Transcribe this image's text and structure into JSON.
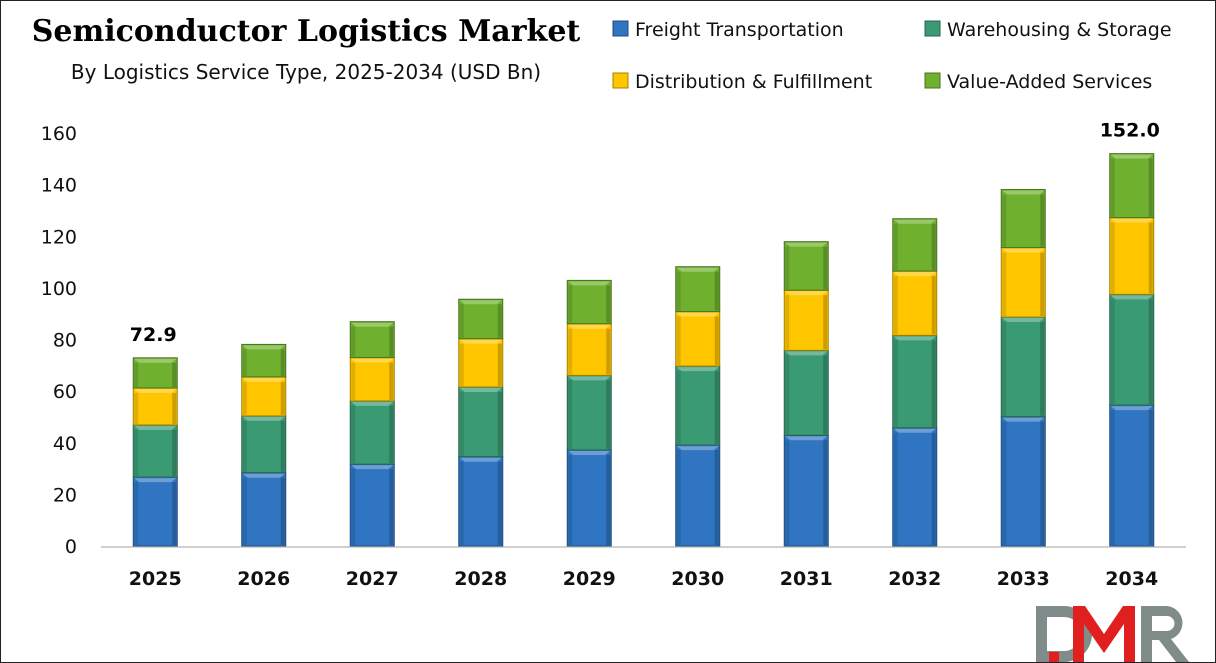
{
  "chart_data": {
    "type": "bar",
    "stacked": true,
    "title": "Semiconductor Logistics Market",
    "subtitle": "By Logistics Service Type, 2025-2034 (USD Bn)",
    "xlabel": "",
    "ylabel": "",
    "ylim": [
      0,
      160
    ],
    "yticks": [
      0,
      20,
      40,
      60,
      80,
      100,
      120,
      140,
      160
    ],
    "grid": false,
    "legend_position": "top-right",
    "categories": [
      "2025",
      "2026",
      "2027",
      "2028",
      "2029",
      "2030",
      "2031",
      "2032",
      "2033",
      "2034"
    ],
    "series": [
      {
        "name": "Freight Transportation",
        "color": "#2F75C2",
        "values": [
          26.7,
          28.4,
          31.7,
          34.6,
          37.2,
          39.1,
          42.9,
          45.8,
          50.1,
          54.6
        ]
      },
      {
        "name": "Warehousing & Storage",
        "color": "#3A9A74",
        "values": [
          20.2,
          22.0,
          24.5,
          27.0,
          28.9,
          30.6,
          32.9,
          35.8,
          38.6,
          42.9
        ]
      },
      {
        "name": "Distribution & Fulfillment",
        "color": "#FFC600",
        "values": [
          14.3,
          15.1,
          16.8,
          18.7,
          20.0,
          21.1,
          23.3,
          24.9,
          26.9,
          29.7
        ]
      },
      {
        "name": "Value-Added Services",
        "color": "#6FB02E",
        "values": [
          11.7,
          12.6,
          13.9,
          15.3,
          16.8,
          17.4,
          18.8,
          20.3,
          22.5,
          24.8
        ]
      }
    ],
    "legend_order": [
      0,
      1,
      2,
      3
    ],
    "annotations": [
      {
        "category": "2025",
        "text": "72.9"
      },
      {
        "category": "2034",
        "text": "152.0"
      }
    ]
  },
  "logo": {
    "text": "DMR",
    "colors": [
      "#7F8C8A",
      "#E0201E"
    ]
  }
}
